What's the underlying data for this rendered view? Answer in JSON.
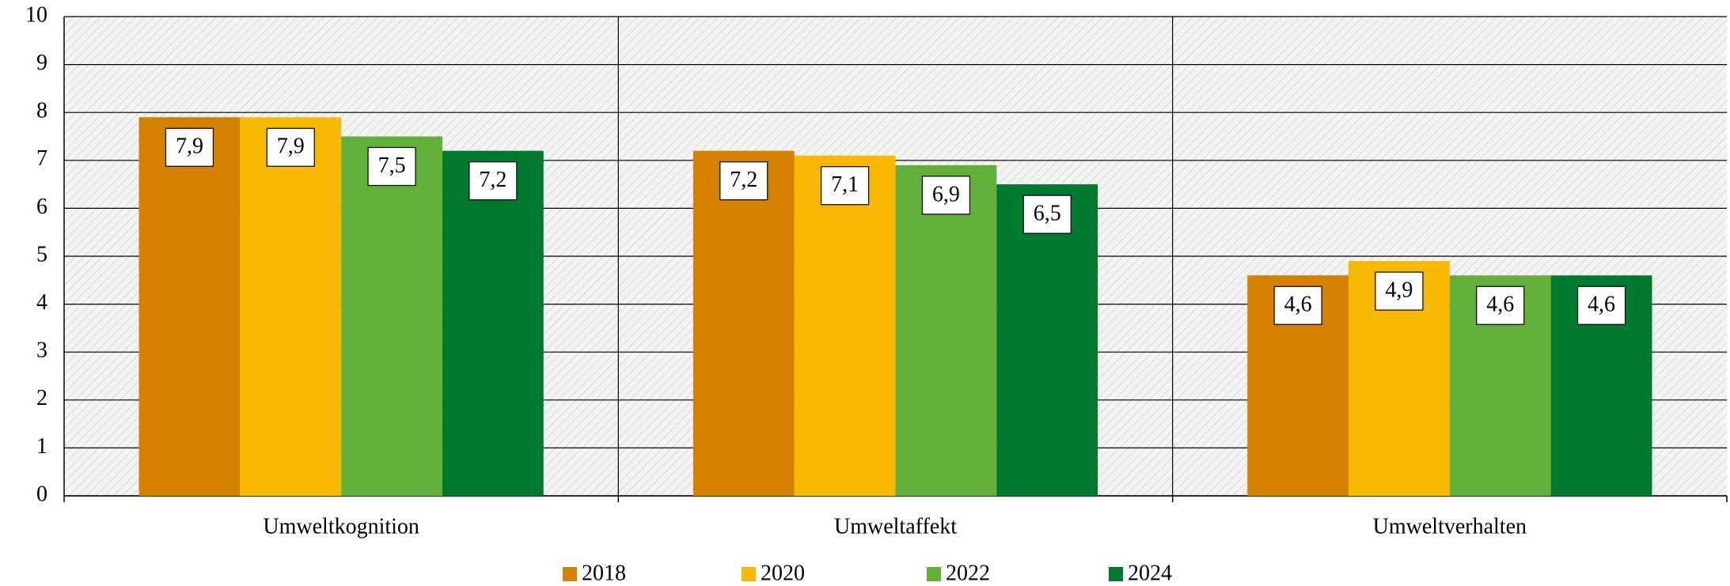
{
  "chart_data": {
    "type": "bar",
    "categories": [
      "Umweltkognition",
      "Umweltaffekt",
      "Umweltverhalten"
    ],
    "series": [
      {
        "name": "2018",
        "color": "#d68000",
        "values": [
          7.9,
          7.2,
          4.6
        ],
        "value_labels": [
          "7,9",
          "7,2",
          "4,6"
        ]
      },
      {
        "name": "2020",
        "color": "#f9b900",
        "values": [
          7.9,
          7.1,
          4.9
        ],
        "value_labels": [
          "7,9",
          "7,1",
          "4,9"
        ]
      },
      {
        "name": "2022",
        "color": "#62b03a",
        "values": [
          7.5,
          6.9,
          4.6
        ],
        "value_labels": [
          "7,5",
          "6,9",
          "4,6"
        ]
      },
      {
        "name": "2024",
        "color": "#007a2e",
        "values": [
          7.2,
          6.5,
          4.6
        ],
        "value_labels": [
          "7,2",
          "6,5",
          "4,6"
        ]
      }
    ],
    "ylim": [
      0,
      10
    ],
    "yticks": [
      0,
      1,
      2,
      3,
      4,
      5,
      6,
      7,
      8,
      9,
      10
    ],
    "grid": true,
    "legend": "bottom"
  }
}
